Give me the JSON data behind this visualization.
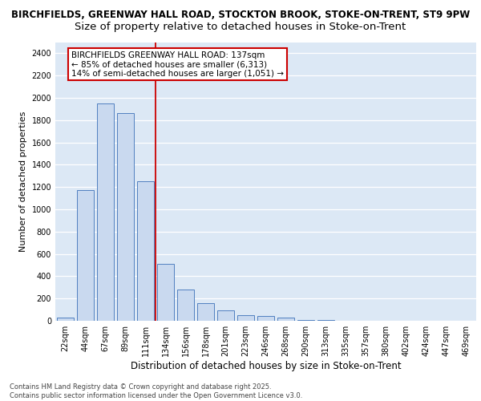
{
  "title_line1": "BIRCHFIELDS, GREENWAY HALL ROAD, STOCKTON BROOK, STOKE-ON-TRENT, ST9 9PW",
  "title_line2": "Size of property relative to detached houses in Stoke-on-Trent",
  "xlabel": "Distribution of detached houses by size in Stoke-on-Trent",
  "ylabel": "Number of detached properties",
  "bar_labels": [
    "22sqm",
    "44sqm",
    "67sqm",
    "89sqm",
    "111sqm",
    "134sqm",
    "156sqm",
    "178sqm",
    "201sqm",
    "223sqm",
    "246sqm",
    "268sqm",
    "290sqm",
    "313sqm",
    "335sqm",
    "357sqm",
    "380sqm",
    "402sqm",
    "424sqm",
    "447sqm",
    "469sqm"
  ],
  "bar_values": [
    30,
    1170,
    1950,
    1860,
    1250,
    510,
    280,
    155,
    95,
    50,
    40,
    30,
    8,
    4,
    2,
    1,
    1,
    1,
    1,
    1,
    1
  ],
  "bar_color": "#c9d9ef",
  "bar_edge_color": "#5080c0",
  "vline_color": "#cc0000",
  "ylim": [
    0,
    2500
  ],
  "yticks": [
    0,
    200,
    400,
    600,
    800,
    1000,
    1200,
    1400,
    1600,
    1800,
    2000,
    2200,
    2400
  ],
  "annotation_text": "BIRCHFIELDS GREENWAY HALL ROAD: 137sqm\n← 85% of detached houses are smaller (6,313)\n14% of semi-detached houses are larger (1,051) →",
  "annotation_box_color": "white",
  "annotation_box_edge": "#cc0000",
  "background_color": "#dce8f5",
  "grid_color": "white",
  "footer_text": "Contains HM Land Registry data © Crown copyright and database right 2025.\nContains public sector information licensed under the Open Government Licence v3.0.",
  "title1_fontsize": 8.5,
  "title2_fontsize": 9.5,
  "xlabel_fontsize": 8.5,
  "ylabel_fontsize": 8,
  "tick_fontsize": 7,
  "annotation_fontsize": 7.5,
  "footer_fontsize": 6
}
